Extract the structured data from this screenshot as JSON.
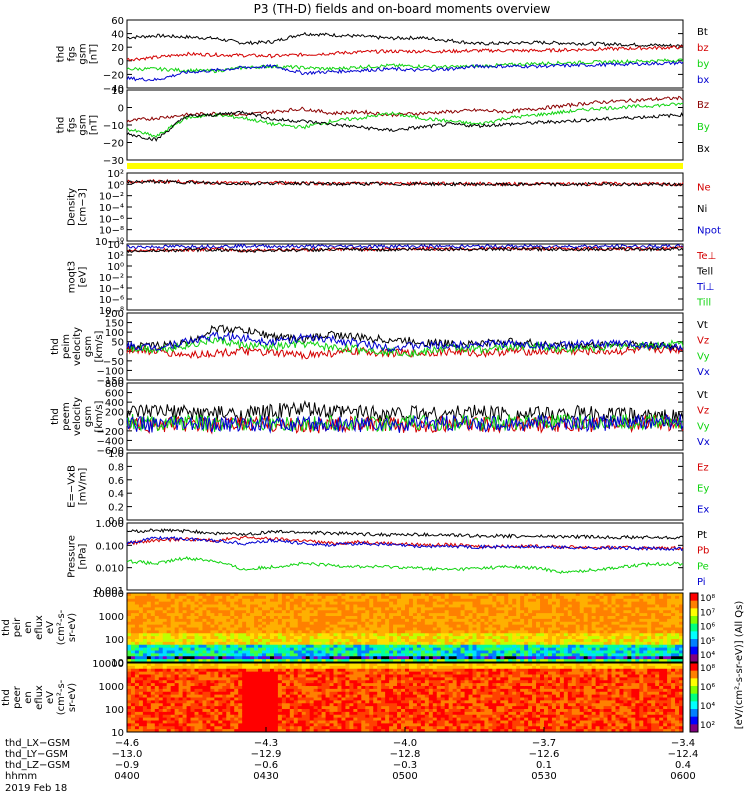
{
  "title": "P3 (TH-D) fields and on-board moments overview",
  "colors": {
    "black": "#000000",
    "red": "#d40000",
    "green": "#10d410",
    "blue": "#0000d0",
    "brown": "#8b0000",
    "yellow": "#ffff00"
  },
  "chart_data": [
    {
      "type": "line",
      "ylabel": [
        "thd",
        "fgs",
        "gsm",
        "[nT]"
      ],
      "ylim": [
        -40,
        60
      ],
      "yticks": [
        "60",
        "40",
        "20",
        "0",
        "−20",
        "−40"
      ],
      "series": [
        {
          "name": "Bt",
          "color": "#000000",
          "values": [
            34,
            37,
            35,
            33,
            26,
            28,
            40,
            38,
            36,
            33,
            34,
            30,
            25,
            26,
            27,
            26,
            25,
            24,
            23,
            22
          ]
        },
        {
          "name": "bz",
          "color": "#d40000",
          "values": [
            2,
            5,
            10,
            9,
            8,
            7,
            9,
            11,
            13,
            14,
            14,
            14,
            15,
            15,
            15,
            16,
            17,
            18,
            19,
            20
          ]
        },
        {
          "name": "by",
          "color": "#10d410",
          "values": [
            -12,
            -12,
            -14,
            -15,
            -10,
            -8,
            -10,
            -12,
            -9,
            -7,
            -8,
            -9,
            -8,
            -6,
            -4,
            -3,
            -2,
            -1,
            0,
            1
          ]
        },
        {
          "name": "bx",
          "color": "#0000d0",
          "values": [
            -26,
            -28,
            -17,
            -14,
            -10,
            -8,
            -18,
            -16,
            -14,
            -12,
            -14,
            -12,
            -8,
            -8,
            -8,
            -7,
            -6,
            -5,
            -4,
            -3
          ]
        }
      ],
      "legend": [
        "Bt",
        "bz",
        "by",
        "bx"
      ]
    },
    {
      "type": "line",
      "ylabel": [
        "thd",
        "fgs",
        "gsm",
        "[nT]"
      ],
      "ylim": [
        -35,
        10
      ],
      "yticks": [
        "10",
        "0",
        "−10",
        "−20",
        "−30"
      ],
      "series": [
        {
          "name": "Bz",
          "color": "#8b0000",
          "values": [
            -10,
            -8,
            -6,
            -5,
            -6,
            -4,
            -2,
            -5,
            -4,
            -6,
            -5,
            -4,
            -3,
            -4,
            -2,
            0,
            2,
            3,
            4,
            5
          ]
        },
        {
          "name": "By",
          "color": "#10d410",
          "values": [
            -15,
            -20,
            -8,
            -6,
            -8,
            -12,
            -14,
            -10,
            -8,
            -5,
            -8,
            -10,
            -12,
            -8,
            -6,
            -4,
            -2,
            -1,
            0,
            1
          ]
        },
        {
          "name": "Bx",
          "color": "#000000",
          "values": [
            -18,
            -22,
            -7,
            -6,
            -4,
            -9,
            -10,
            -12,
            -14,
            -16,
            -14,
            -12,
            -13,
            -12,
            -11,
            -10,
            -9,
            -8,
            -7,
            -6
          ]
        }
      ],
      "legend": [
        "Bz",
        "By",
        "Bx"
      ]
    },
    {
      "type": "line",
      "ylabel": [
        "Density",
        "[cm−3]"
      ],
      "ylim": [
        -12,
        2
      ],
      "yticks": [
        "10²",
        "10⁰",
        "10−²",
        "10−⁴",
        "10−⁶",
        "10−⁸",
        "10−¹⁰"
      ],
      "series": [
        {
          "name": "Ne",
          "color": "#d40000",
          "values": [
            0.2,
            0.3,
            0.2,
            0.0,
            -0.1,
            0.0,
            0.0,
            -0.2,
            -0.1,
            -0.2,
            -0.1,
            -0.2,
            -0.2,
            -0.3,
            -0.2,
            -0.3,
            -0.2,
            -0.2,
            -0.3,
            -0.3
          ]
        },
        {
          "name": "Ni",
          "color": "#000000",
          "values": [
            0.1,
            0.2,
            0.1,
            -0.1,
            -0.2,
            -0.1,
            -0.1,
            -0.3,
            -0.2,
            -0.3,
            -0.2,
            -0.3,
            -0.3,
            -0.4,
            -0.3,
            -0.4,
            -0.3,
            -0.3,
            -0.4,
            -0.4
          ]
        }
      ],
      "legend": [
        "Ne",
        "Ni",
        "Npot"
      ]
    },
    {
      "type": "line",
      "ylabel": [
        "moqt3",
        "[eV]"
      ],
      "ylim": [
        -10,
        4
      ],
      "yticks": [
        "10⁴",
        "10²",
        "10⁰",
        "10−²",
        "10−⁴",
        "10−⁶",
        "10−⁸"
      ],
      "series": [
        {
          "name": "Ti⊥",
          "color": "#0000d0",
          "values": [
            3.4,
            3.4,
            3.5,
            3.5,
            3.6,
            3.5,
            3.5,
            3.5,
            3.5,
            3.5,
            3.5,
            3.5,
            3.5,
            3.5,
            3.5,
            3.5,
            3.5,
            3.5,
            3.5,
            3.5
          ]
        },
        {
          "name": "Te⊥",
          "color": "#d40000",
          "values": [
            2.6,
            2.7,
            2.8,
            2.9,
            2.6,
            2.8,
            2.8,
            2.9,
            2.9,
            2.9,
            3.0,
            3.0,
            3.0,
            3.0,
            3.0,
            3.0,
            3.0,
            3.0,
            3.0,
            3.1
          ]
        },
        {
          "name": "Tell",
          "color": "#000000",
          "values": [
            2.5,
            2.6,
            2.7,
            2.8,
            2.5,
            2.7,
            2.7,
            2.8,
            2.8,
            2.8,
            2.9,
            2.9,
            2.9,
            2.9,
            2.9,
            2.9,
            2.9,
            2.9,
            2.9,
            3.0
          ]
        }
      ],
      "legend": [
        "Te⊥",
        "Tell",
        "Ti⊥",
        "Till"
      ]
    },
    {
      "type": "line",
      "ylabel": [
        "thd",
        "peim",
        "velocity",
        "gsm",
        "[km/s]"
      ],
      "ylim": [
        -150,
        200
      ],
      "yticks": [
        "200",
        "150",
        "100",
        "50",
        "0",
        "−50",
        "−100",
        "−150"
      ],
      "series": [
        {
          "name": "Vt",
          "color": "#000000",
          "values": [
            20,
            30,
            40,
            120,
            110,
            80,
            60,
            90,
            70,
            60,
            50,
            40,
            40,
            50,
            40,
            30,
            30,
            40,
            30,
            20
          ]
        },
        {
          "name": "Vz",
          "color": "#d40000",
          "values": [
            10,
            0,
            -20,
            -10,
            0,
            -10,
            -20,
            -10,
            0,
            -10,
            -10,
            0,
            -10,
            0,
            0,
            0,
            0,
            0,
            10,
            10
          ]
        },
        {
          "name": "Vy",
          "color": "#10d410",
          "values": [
            20,
            10,
            30,
            60,
            30,
            20,
            40,
            20,
            10,
            0,
            -10,
            20,
            10,
            20,
            30,
            10,
            20,
            30,
            30,
            40
          ]
        },
        {
          "name": "Vx",
          "color": "#0000d0",
          "values": [
            30,
            20,
            50,
            80,
            70,
            50,
            70,
            60,
            40,
            20,
            30,
            30,
            40,
            40,
            30,
            30,
            40,
            40,
            30,
            20
          ]
        }
      ],
      "legend": [
        "Vt",
        "Vz",
        "Vy",
        "Vx"
      ]
    },
    {
      "type": "line",
      "ylabel": [
        "thd",
        "peem",
        "velocity",
        "gsm",
        "[km/s]"
      ],
      "ylim": [
        -600,
        800
      ],
      "yticks": [
        "800",
        "600",
        "400",
        "200",
        "0",
        "−200",
        "−400",
        "−600"
      ],
      "series": [
        {
          "name": "Vt",
          "color": "#000000",
          "values": [
            150,
            200,
            180,
            160,
            140,
            200,
            260,
            180,
            200,
            160,
            180,
            150,
            200,
            160,
            140,
            170,
            150,
            120,
            100,
            80
          ]
        },
        {
          "name": "Vz",
          "color": "#d40000",
          "values": [
            -50,
            -80,
            -60,
            -100,
            -50,
            -60,
            -100,
            -80,
            -60,
            -80,
            -70,
            -60,
            -80,
            -60,
            -60,
            -70,
            -60,
            -50,
            -40,
            -30
          ]
        },
        {
          "name": "Vy",
          "color": "#10d410",
          "values": [
            0,
            -40,
            -20,
            -60,
            -20,
            -30,
            -60,
            -40,
            -30,
            -50,
            -40,
            -20,
            -40,
            -20,
            -30,
            -30,
            -20,
            -20,
            -10,
            0
          ]
        },
        {
          "name": "Vx",
          "color": "#0000d0",
          "values": [
            -40,
            -80,
            -60,
            -80,
            -40,
            -60,
            -80,
            -60,
            -60,
            -80,
            -60,
            -50,
            -60,
            -40,
            -40,
            -50,
            -40,
            -30,
            -20,
            -10
          ]
        }
      ],
      "legend": [
        "Vt",
        "Vz",
        "Vy",
        "Vx"
      ]
    },
    {
      "type": "line",
      "ylabel": [
        "E=−VxB",
        "[mV/m]"
      ],
      "ylim": [
        0,
        1
      ],
      "yticks": [
        "1.0",
        "0.8",
        "0.6",
        "0.4",
        "0.2",
        "0.0"
      ],
      "series": [],
      "legend": [
        "Ez",
        "Ey",
        "Ex"
      ]
    },
    {
      "type": "line",
      "ylabel": [
        "Pressure",
        "[nPa]"
      ],
      "ylim": [
        -2.1,
        0.2
      ],
      "scale": "log",
      "yticks": [
        "1.000",
        "0.100",
        "0.010",
        "0.001"
      ],
      "series": [
        {
          "name": "Pt",
          "color": "#000000",
          "values": [
            -0.1,
            -0.05,
            -0.08,
            -0.15,
            -0.2,
            -0.1,
            -0.12,
            -0.15,
            -0.18,
            -0.2,
            -0.2,
            -0.22,
            -0.24,
            -0.25,
            -0.26,
            -0.27,
            -0.28,
            -0.29,
            -0.3,
            -0.3
          ]
        },
        {
          "name": "Pb",
          "color": "#d40000",
          "values": [
            -0.5,
            -0.4,
            -0.35,
            -0.4,
            -0.3,
            -0.35,
            -0.4,
            -0.5,
            -0.45,
            -0.5,
            -0.55,
            -0.55,
            -0.6,
            -0.6,
            -0.6,
            -0.62,
            -0.64,
            -0.65,
            -0.66,
            -0.66
          ]
        },
        {
          "name": "Pe",
          "color": "#10d410",
          "values": [
            -1.1,
            -1.2,
            -1.0,
            -1.1,
            -1.4,
            -1.3,
            -1.2,
            -1.25,
            -1.3,
            -1.3,
            -1.35,
            -1.4,
            -1.35,
            -1.3,
            -1.35,
            -1.5,
            -1.4,
            -1.3,
            -1.2,
            -1.2
          ]
        },
        {
          "name": "Pi",
          "color": "#0000d0",
          "values": [
            -0.5,
            -0.3,
            -0.35,
            -0.4,
            -0.5,
            -0.4,
            -0.5,
            -0.55,
            -0.5,
            -0.55,
            -0.6,
            -0.6,
            -0.62,
            -0.62,
            -0.62,
            -0.64,
            -0.66,
            -0.66,
            -0.68,
            -0.68
          ]
        }
      ],
      "legend": [
        "Pt",
        "Pb",
        "Pe",
        "Pi"
      ]
    },
    {
      "type": "heatmap",
      "ylabel": [
        "thd",
        "peir",
        "en",
        "eflux",
        "eV",
        "(cm²-s-",
        "sr-eV)"
      ],
      "yticks": [
        "10000",
        "1000",
        "100",
        "10"
      ]
    },
    {
      "type": "heatmap",
      "ylabel": [
        "thd",
        "peer",
        "en",
        "eflux",
        "eV",
        "(cm²-s-",
        "sr-eV)"
      ],
      "yticks": [
        "10000",
        "1000",
        "100",
        "10"
      ]
    }
  ],
  "colorbars": [
    {
      "ticks": [
        "10⁸",
        "10⁷",
        "10⁶",
        "10⁵",
        "10⁴"
      ],
      "label": "[eV/(cm²-s-sr-eV)] (All Qs)"
    },
    {
      "ticks": [
        "10⁸",
        "10⁶",
        "10⁴",
        "10²"
      ],
      "label": "[eV/(cm²-s-sr-eV)]"
    }
  ],
  "xaxis": {
    "rows": [
      {
        "label": "thd_LX−GSM",
        "values": [
          "−4.6",
          "−4.3",
          "−4.0",
          "−3.7",
          "−3.4"
        ]
      },
      {
        "label": "thd_LY−GSM",
        "values": [
          "−13.0",
          "−12.9",
          "−12.8",
          "−12.6",
          "−12.4"
        ]
      },
      {
        "label": "thd_LZ−GSM",
        "values": [
          "−0.9",
          "−0.6",
          "−0.3",
          "0.1",
          "0.4"
        ]
      },
      {
        "label": "hhmm",
        "values": [
          "0400",
          "0430",
          "0500",
          "0530",
          "0600"
        ]
      }
    ],
    "date": "2019 Feb 18"
  }
}
